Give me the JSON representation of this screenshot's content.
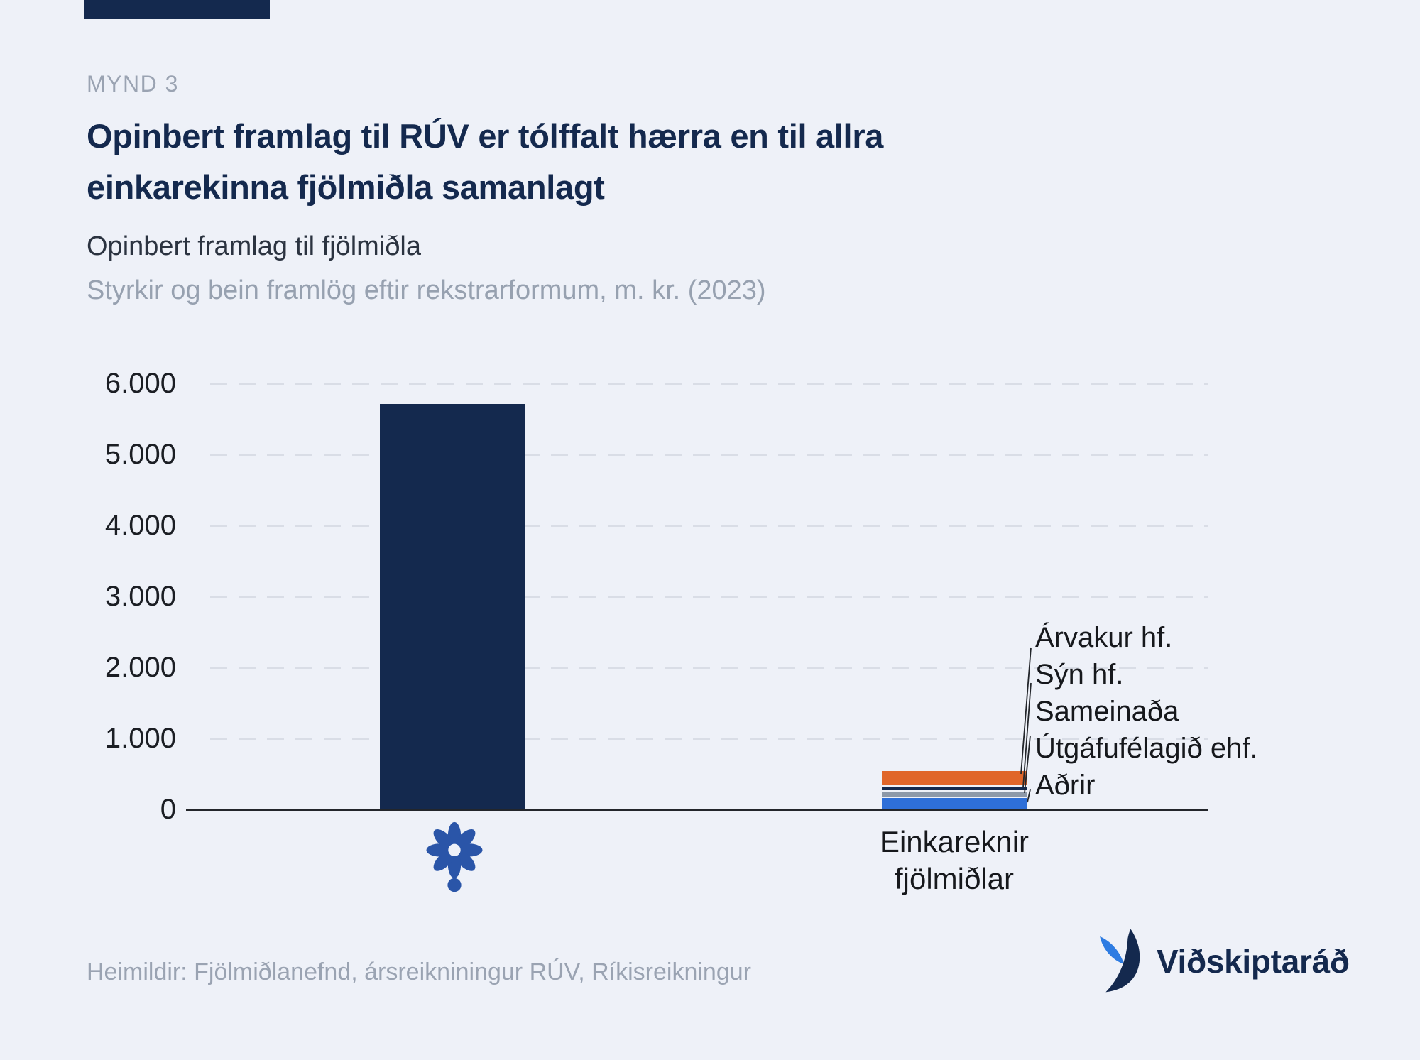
{
  "header": {
    "figure_label": "MYND 3",
    "title_line1": "Opinbert framlag til RÚV er tólffalt hærra en til allra",
    "title_line2": "einkarekinna fjölmiðla samanlagt",
    "subtitle": "Opinbert framlag til fjölmiðla",
    "subtitle_note": "Styrkir og bein framlög eftir rekstrarformum, m. kr. (2023)"
  },
  "chart_data": {
    "type": "bar",
    "title": "Opinbert framlag til fjölmiðla",
    "subtitle": "Styrkir og bein framlög eftir rekstrarformum, m. kr. (2023)",
    "unit": "m. kr.",
    "year": 2023,
    "ylim": [
      0,
      6000
    ],
    "grid": "horizontal-dashed",
    "legend_position": "annotation-labels-right",
    "yticks": [
      {
        "value": 6000,
        "label": "6.000"
      },
      {
        "value": 5000,
        "label": "5.000"
      },
      {
        "value": 4000,
        "label": "4.000"
      },
      {
        "value": 3000,
        "label": "3.000"
      },
      {
        "value": 2000,
        "label": "2.000"
      },
      {
        "value": 1000,
        "label": "1.000"
      },
      {
        "value": 0,
        "label": "0"
      }
    ],
    "categories": [
      "RÚV",
      "Einkareknir fjölmiðlar"
    ],
    "bars": [
      {
        "id": "ruv",
        "category": "RÚV",
        "segments": [
          {
            "name": "RÚV",
            "value": 5700,
            "color": "#14294e"
          }
        ]
      },
      {
        "id": "einkareknir-fjolmidlar",
        "category": "Einkareknir fjölmiðlar",
        "segments": [
          {
            "name": "Aðrir",
            "value": 150,
            "color": "#2e6fd8"
          },
          {
            "name": "Sameinaða Útgáfufélagið ehf.",
            "value": 70,
            "color": "#8d99a9"
          },
          {
            "name": "Sýn hf.",
            "value": 55,
            "color": "#14294e"
          },
          {
            "name": "Árvakur hf.",
            "value": 200,
            "color": "#e0662a"
          }
        ]
      }
    ],
    "annotations": [
      {
        "label": "Árvakur hf.",
        "lines": [
          "Árvakur hf."
        ]
      },
      {
        "label": "Sýn hf.",
        "lines": [
          "Sýn hf."
        ]
      },
      {
        "label": "Sameinaða Útgáfufélagið ehf.",
        "lines": [
          "Sameinaða",
          "Útgáfufélagið ehf."
        ]
      },
      {
        "label": "Aðrir",
        "lines": [
          "Aðrir"
        ]
      }
    ],
    "xlabels": {
      "ruv_icon": "ruv-logo",
      "private": "Einkareknir\nfjölmiðlar"
    }
  },
  "footer": {
    "source": "Heimildir: Fjölmiðlanefnd, ársreikniningur RÚV, Ríkisreikningur",
    "brand": "Viðskiptaráð"
  },
  "colors": {
    "background": "#eef1f8",
    "navy": "#14294e",
    "orange": "#e0662a",
    "gray_segment": "#8d99a9",
    "blue_segment": "#2e6fd8",
    "muted_text": "#9aa3b2",
    "gridline": "#d9dde6"
  }
}
